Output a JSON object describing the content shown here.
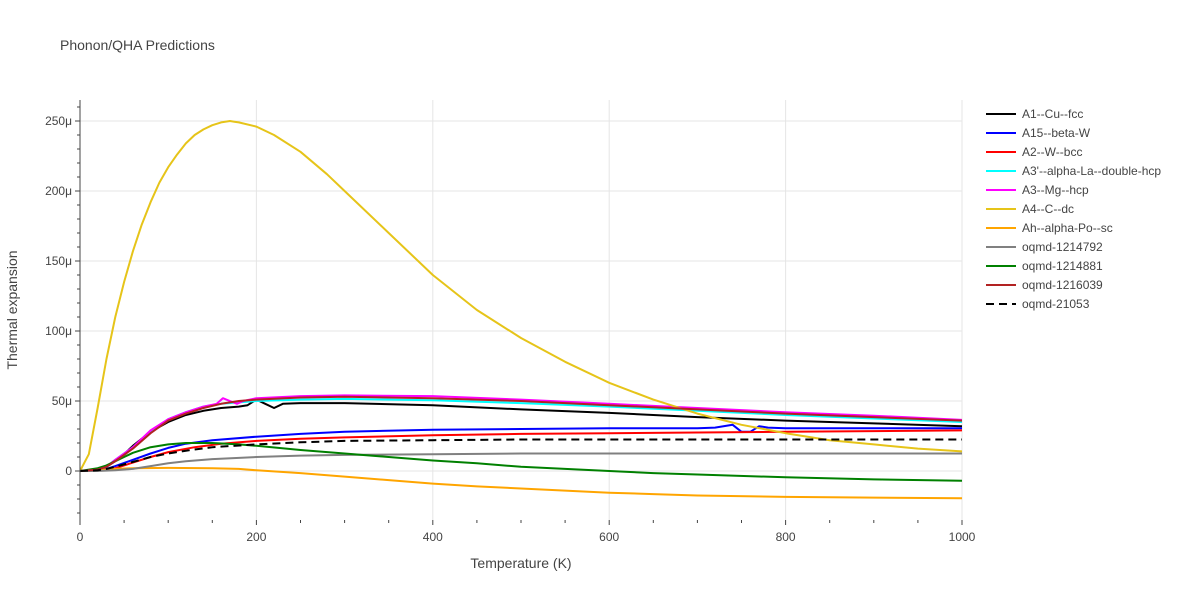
{
  "chart_data": {
    "type": "line",
    "title": "Phonon/QHA Predictions",
    "xlabel": "Temperature (K)",
    "ylabel": "Thermal expansion",
    "xlim": [
      0,
      1000
    ],
    "ylim": [
      -35,
      265
    ],
    "y_unit_note": "values in micro (1e-6); tick labels use μ suffix",
    "x_ticks": [
      0,
      200,
      400,
      600,
      800,
      1000
    ],
    "x_tick_labels": [
      "0",
      "200",
      "400",
      "600",
      "800",
      "1000"
    ],
    "y_ticks": [
      0,
      50,
      100,
      150,
      200,
      250
    ],
    "y_tick_labels": [
      "0",
      "50μ",
      "100μ",
      "150μ",
      "200μ",
      "250μ"
    ],
    "grid": true,
    "legend_position": "right",
    "series": [
      {
        "name": "A1--Cu--fcc",
        "color": "#000000",
        "dash": "solid",
        "points": [
          [
            0,
            0
          ],
          [
            20,
            1
          ],
          [
            30,
            3
          ],
          [
            40,
            7
          ],
          [
            50,
            12
          ],
          [
            60,
            18
          ],
          [
            80,
            28
          ],
          [
            100,
            35
          ],
          [
            120,
            40
          ],
          [
            140,
            43
          ],
          [
            160,
            45
          ],
          [
            180,
            46
          ],
          [
            190,
            47
          ],
          [
            200,
            51
          ],
          [
            210,
            48
          ],
          [
            220,
            45
          ],
          [
            230,
            48
          ],
          [
            250,
            48.5
          ],
          [
            300,
            48.5
          ],
          [
            400,
            47
          ],
          [
            500,
            44
          ],
          [
            600,
            41.5
          ],
          [
            700,
            38.5
          ],
          [
            800,
            36
          ],
          [
            900,
            34
          ],
          [
            1000,
            32
          ]
        ]
      },
      {
        "name": "A15--beta-W",
        "color": "#0000ff",
        "dash": "solid",
        "points": [
          [
            0,
            0
          ],
          [
            20,
            0.5
          ],
          [
            30,
            1.5
          ],
          [
            40,
            3.5
          ],
          [
            60,
            8
          ],
          [
            80,
            12.5
          ],
          [
            100,
            16.5
          ],
          [
            120,
            19.5
          ],
          [
            150,
            22
          ],
          [
            200,
            24.5
          ],
          [
            250,
            26.5
          ],
          [
            300,
            28
          ],
          [
            400,
            29.5
          ],
          [
            500,
            30
          ],
          [
            600,
            30.5
          ],
          [
            700,
            30.5
          ],
          [
            720,
            31
          ],
          [
            740,
            33
          ],
          [
            750,
            28
          ],
          [
            760,
            28
          ],
          [
            770,
            32
          ],
          [
            780,
            31
          ],
          [
            800,
            30.5
          ],
          [
            900,
            30.5
          ],
          [
            1000,
            30.5
          ]
        ]
      },
      {
        "name": "A2--W--bcc",
        "color": "#ff0000",
        "dash": "solid",
        "points": [
          [
            0,
            0
          ],
          [
            20,
            0.3
          ],
          [
            40,
            2
          ],
          [
            60,
            6
          ],
          [
            80,
            10
          ],
          [
            100,
            13.5
          ],
          [
            130,
            17
          ],
          [
            160,
            19.5
          ],
          [
            200,
            21.5
          ],
          [
            250,
            23
          ],
          [
            300,
            24
          ],
          [
            400,
            25.5
          ],
          [
            500,
            26.5
          ],
          [
            600,
            27
          ],
          [
            700,
            27.5
          ],
          [
            800,
            28
          ],
          [
            900,
            28.5
          ],
          [
            1000,
            29
          ]
        ]
      },
      {
        "name": "A3'--alpha-La--double-hcp",
        "color": "#00ffff",
        "dash": "solid",
        "points": [
          [
            0,
            0
          ],
          [
            20,
            1
          ],
          [
            30,
            3
          ],
          [
            40,
            8
          ],
          [
            60,
            17
          ],
          [
            80,
            28
          ],
          [
            100,
            37
          ],
          [
            120,
            42
          ],
          [
            140,
            46
          ],
          [
            160,
            48
          ],
          [
            180,
            49
          ],
          [
            200,
            50
          ],
          [
            250,
            51
          ],
          [
            300,
            51.5
          ],
          [
            400,
            50.5
          ],
          [
            500,
            48.5
          ],
          [
            600,
            46
          ],
          [
            700,
            43
          ],
          [
            800,
            40
          ],
          [
            900,
            37.5
          ],
          [
            1000,
            35
          ]
        ]
      },
      {
        "name": "A3--Mg--hcp",
        "color": "#ff00ff",
        "dash": "solid",
        "points": [
          [
            0,
            0
          ],
          [
            20,
            1
          ],
          [
            30,
            3
          ],
          [
            40,
            8
          ],
          [
            60,
            17
          ],
          [
            80,
            29
          ],
          [
            100,
            37
          ],
          [
            120,
            42
          ],
          [
            140,
            46
          ],
          [
            155,
            48
          ],
          [
            162,
            52
          ],
          [
            170,
            50
          ],
          [
            178,
            48
          ],
          [
            185,
            50
          ],
          [
            200,
            52
          ],
          [
            250,
            53.5
          ],
          [
            300,
            54
          ],
          [
            400,
            53.5
          ],
          [
            500,
            51
          ],
          [
            600,
            48
          ],
          [
            700,
            45
          ],
          [
            800,
            42
          ],
          [
            900,
            39.5
          ],
          [
            1000,
            36.5
          ]
        ]
      },
      {
        "name": "A4--C--dc",
        "color": "#e6c419",
        "dash": "solid",
        "points": [
          [
            0,
            0
          ],
          [
            10,
            12
          ],
          [
            20,
            45
          ],
          [
            30,
            80
          ],
          [
            40,
            110
          ],
          [
            50,
            135
          ],
          [
            60,
            157
          ],
          [
            70,
            176
          ],
          [
            80,
            192
          ],
          [
            90,
            206
          ],
          [
            100,
            217
          ],
          [
            110,
            226
          ],
          [
            120,
            234
          ],
          [
            130,
            240
          ],
          [
            140,
            244
          ],
          [
            150,
            247
          ],
          [
            160,
            249
          ],
          [
            170,
            250
          ],
          [
            175,
            249.5
          ],
          [
            180,
            249
          ],
          [
            200,
            246
          ],
          [
            220,
            240
          ],
          [
            250,
            228
          ],
          [
            280,
            212
          ],
          [
            300,
            200
          ],
          [
            350,
            170
          ],
          [
            400,
            140
          ],
          [
            450,
            115
          ],
          [
            500,
            95
          ],
          [
            550,
            78
          ],
          [
            600,
            63
          ],
          [
            650,
            51
          ],
          [
            700,
            41
          ],
          [
            750,
            33
          ],
          [
            800,
            27
          ],
          [
            850,
            22
          ],
          [
            900,
            19
          ],
          [
            950,
            16
          ],
          [
            1000,
            14
          ]
        ]
      },
      {
        "name": "Ah--alpha-Po--sc",
        "color": "#ffa500",
        "dash": "solid",
        "points": [
          [
            0,
            0
          ],
          [
            20,
            0.5
          ],
          [
            40,
            1.5
          ],
          [
            60,
            2
          ],
          [
            100,
            2.2
          ],
          [
            150,
            2
          ],
          [
            180,
            1.5
          ],
          [
            200,
            0.5
          ],
          [
            250,
            -1.5
          ],
          [
            300,
            -4
          ],
          [
            350,
            -6.5
          ],
          [
            400,
            -9
          ],
          [
            450,
            -11
          ],
          [
            500,
            -12.5
          ],
          [
            550,
            -14
          ],
          [
            600,
            -15.5
          ],
          [
            650,
            -16.5
          ],
          [
            700,
            -17.5
          ],
          [
            800,
            -18.5
          ],
          [
            900,
            -19
          ],
          [
            1000,
            -19.5
          ]
        ]
      },
      {
        "name": "oqmd-1214792",
        "color": "#808080",
        "dash": "solid",
        "points": [
          [
            0,
            0
          ],
          [
            20,
            0
          ],
          [
            40,
            0.5
          ],
          [
            60,
            1.5
          ],
          [
            80,
            3.5
          ],
          [
            100,
            5.5
          ],
          [
            120,
            7
          ],
          [
            150,
            8.5
          ],
          [
            200,
            10
          ],
          [
            250,
            11
          ],
          [
            300,
            11.5
          ],
          [
            400,
            12
          ],
          [
            500,
            12.5
          ],
          [
            600,
            12.5
          ],
          [
            700,
            12.5
          ],
          [
            800,
            12.5
          ],
          [
            900,
            12.5
          ],
          [
            1000,
            12.5
          ]
        ]
      },
      {
        "name": "oqmd-1214881",
        "color": "#008000",
        "dash": "solid",
        "points": [
          [
            0,
            0
          ],
          [
            20,
            2
          ],
          [
            30,
            4
          ],
          [
            40,
            7
          ],
          [
            50,
            10
          ],
          [
            60,
            13
          ],
          [
            80,
            17
          ],
          [
            100,
            19
          ],
          [
            120,
            20
          ],
          [
            150,
            20
          ],
          [
            180,
            19
          ],
          [
            200,
            18
          ],
          [
            250,
            15
          ],
          [
            300,
            12.5
          ],
          [
            350,
            10
          ],
          [
            400,
            7.5
          ],
          [
            450,
            5.5
          ],
          [
            500,
            3
          ],
          [
            550,
            1.5
          ],
          [
            600,
            0
          ],
          [
            650,
            -1.5
          ],
          [
            700,
            -2.5
          ],
          [
            800,
            -4.5
          ],
          [
            900,
            -6
          ],
          [
            1000,
            -7
          ]
        ]
      },
      {
        "name": "oqmd-1216039",
        "color": "#b22222",
        "dash": "solid",
        "points": [
          [
            0,
            0
          ],
          [
            20,
            1
          ],
          [
            30,
            3
          ],
          [
            40,
            7
          ],
          [
            60,
            16
          ],
          [
            80,
            27
          ],
          [
            100,
            36
          ],
          [
            120,
            41
          ],
          [
            140,
            45
          ],
          [
            160,
            48
          ],
          [
            180,
            50
          ],
          [
            200,
            51
          ],
          [
            250,
            52.5
          ],
          [
            300,
            53
          ],
          [
            400,
            52
          ],
          [
            500,
            50
          ],
          [
            600,
            47
          ],
          [
            700,
            44
          ],
          [
            800,
            41
          ],
          [
            900,
            38.5
          ],
          [
            1000,
            36
          ]
        ]
      },
      {
        "name": "oqmd-21053",
        "color": "#000000",
        "dash": "dash",
        "points": [
          [
            0,
            0
          ],
          [
            20,
            0.5
          ],
          [
            30,
            1.5
          ],
          [
            40,
            3
          ],
          [
            60,
            6.5
          ],
          [
            80,
            10
          ],
          [
            100,
            12.5
          ],
          [
            120,
            14.5
          ],
          [
            150,
            17
          ],
          [
            200,
            19
          ],
          [
            250,
            20.5
          ],
          [
            300,
            21.5
          ],
          [
            400,
            22
          ],
          [
            500,
            22.5
          ],
          [
            600,
            22.5
          ],
          [
            700,
            22.5
          ],
          [
            800,
            22.5
          ],
          [
            900,
            22.5
          ],
          [
            1000,
            22.5
          ]
        ]
      }
    ]
  }
}
